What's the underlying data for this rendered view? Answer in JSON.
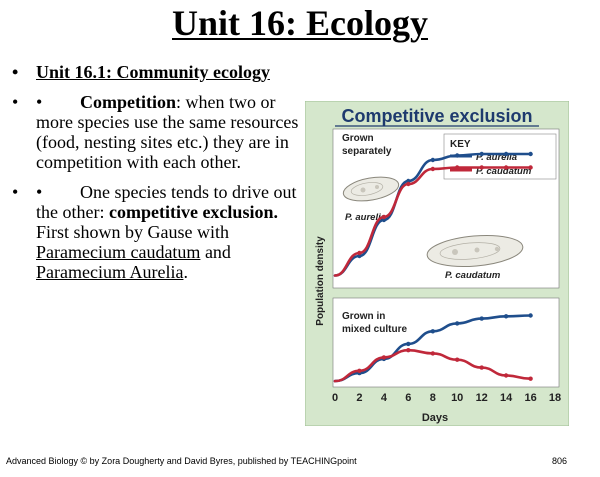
{
  "slide": {
    "title": "Unit 16: Ecology",
    "bullets": {
      "marker": "•",
      "b1": "Unit 16.1: Community ecology",
      "b2_marker": "•",
      "b2_bold": "Competition",
      "b2_rest": ": when two or more species use the same resources (food, nesting sites etc.) they are in competition with each other.",
      "b3_marker": "•",
      "b3_text1": "One species tends to drive out the other: ",
      "b3_bold": "competitive exclusion.",
      "b3_text2": " First shown by Gause with ",
      "b3_species1": "Paramecium caudatum",
      "b3_and": " and ",
      "b3_species2": "Paramecium Aurelia",
      "b3_end": "."
    },
    "footer": {
      "credit": "Advanced Biology © by Zora Dougherty and David Byres, published by TEACHINGpoint",
      "page": "806"
    }
  },
  "figure": {
    "title": "Competitive exclusion",
    "panel_top_label_1": "Grown",
    "panel_top_label_2": "separately",
    "panel_bottom_label_1": "Grown in",
    "panel_bottom_label_2": "mixed culture",
    "key_title": "KEY",
    "key_items": [
      "P. aurelia",
      "P. caudatum"
    ],
    "organism_labels": [
      "P. aurelia",
      "P. caudatum"
    ],
    "colors": {
      "aurelia": "#1f4e8c",
      "caudatum": "#c0283a",
      "panel_bg": "#d5e7cc",
      "plot_bg": "#ffffff",
      "title_text": "#1e3a6e",
      "frame": "#9fbf93"
    }
  },
  "chart_data": {
    "type": "line",
    "title": "Competitive exclusion",
    "xlabel": "Days",
    "ylabel": "Population density",
    "xlim": [
      0,
      18
    ],
    "x_ticks": [
      0,
      2,
      4,
      6,
      8,
      10,
      12,
      14,
      16,
      18
    ],
    "ylim": [
      0,
      1
    ],
    "panels": [
      {
        "name": "Grown separately",
        "series": [
          {
            "name": "P. aurelia",
            "x": [
              0,
              2,
              4,
              6,
              8,
              10,
              12,
              14,
              16
            ],
            "y": [
              0.05,
              0.18,
              0.42,
              0.68,
              0.82,
              0.85,
              0.86,
              0.86,
              0.86
            ]
          },
          {
            "name": "P. caudatum",
            "x": [
              0,
              2,
              4,
              6,
              8,
              10,
              12,
              14,
              16
            ],
            "y": [
              0.05,
              0.2,
              0.44,
              0.66,
              0.76,
              0.77,
              0.77,
              0.77,
              0.77
            ]
          }
        ]
      },
      {
        "name": "Grown in mixed culture",
        "series": [
          {
            "name": "P. aurelia",
            "x": [
              0,
              2,
              4,
              6,
              8,
              10,
              12,
              14,
              16
            ],
            "y": [
              0.05,
              0.15,
              0.33,
              0.52,
              0.68,
              0.78,
              0.84,
              0.87,
              0.88
            ]
          },
          {
            "name": "P. caudatum",
            "x": [
              0,
              2,
              4,
              6,
              8,
              10,
              12,
              14,
              16
            ],
            "y": [
              0.05,
              0.18,
              0.35,
              0.44,
              0.4,
              0.32,
              0.22,
              0.12,
              0.08
            ]
          }
        ]
      }
    ]
  }
}
